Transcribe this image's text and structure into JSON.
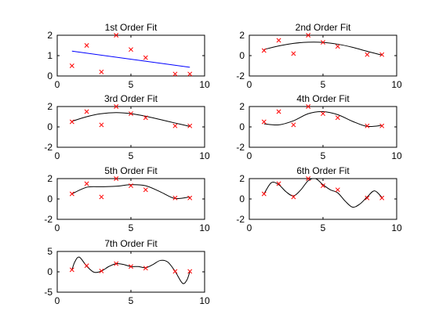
{
  "chart_data": [
    {
      "type": "line",
      "title": "1st Order Fit",
      "xlim": [
        0,
        10
      ],
      "ylim": [
        0,
        2
      ],
      "xticks": [
        0,
        5,
        10
      ],
      "yticks": [
        0,
        1,
        2
      ],
      "xtick_labels": [
        "0",
        "5",
        "10"
      ],
      "ytick_labels": [
        "0",
        "1",
        "2"
      ],
      "fit_color": "#0000ff",
      "fit": {
        "x": [
          1,
          9
        ],
        "y": [
          1.22,
          0.43
        ]
      },
      "points": {
        "x": [
          1,
          2,
          3,
          4,
          5,
          6,
          8,
          9
        ],
        "y": [
          0.5,
          1.5,
          0.2,
          2.0,
          1.3,
          0.9,
          0.1,
          0.1
        ]
      }
    },
    {
      "type": "line",
      "title": "2nd Order Fit",
      "xlim": [
        0,
        10
      ],
      "ylim": [
        -2,
        2
      ],
      "xticks": [
        0,
        5,
        10
      ],
      "yticks": [
        -2,
        0,
        2
      ],
      "xtick_labels": [
        "0",
        "5",
        "10"
      ],
      "ytick_labels": [
        "-2",
        "0",
        "2"
      ],
      "fit_color": "#000000",
      "fit": {
        "x": [
          1,
          2,
          3,
          4,
          5,
          6,
          7,
          8,
          9
        ],
        "y": [
          0.6,
          0.95,
          1.2,
          1.32,
          1.3,
          1.12,
          0.82,
          0.42,
          0.05
        ]
      },
      "points": {
        "x": [
          1,
          2,
          3,
          4,
          5,
          6,
          8,
          9
        ],
        "y": [
          0.5,
          1.5,
          0.2,
          2.0,
          1.3,
          0.9,
          0.1,
          0.1
        ]
      }
    },
    {
      "type": "line",
      "title": "3rd Order Fit",
      "xlim": [
        0,
        10
      ],
      "ylim": [
        -2,
        2
      ],
      "xticks": [
        0,
        5,
        10
      ],
      "yticks": [
        -2,
        0,
        2
      ],
      "xtick_labels": [
        "0",
        "5",
        "10"
      ],
      "ytick_labels": [
        "-2",
        "0",
        "2"
      ],
      "fit_color": "#000000",
      "fit": {
        "x": [
          1,
          2,
          3,
          4,
          5,
          6,
          7,
          8,
          9
        ],
        "y": [
          0.55,
          1.0,
          1.3,
          1.4,
          1.3,
          1.05,
          0.72,
          0.38,
          0.05
        ]
      },
      "points": {
        "x": [
          1,
          2,
          3,
          4,
          5,
          6,
          8,
          9
        ],
        "y": [
          0.5,
          1.5,
          0.2,
          2.0,
          1.3,
          0.9,
          0.1,
          0.1
        ]
      }
    },
    {
      "type": "line",
      "title": "4th Order Fit",
      "xlim": [
        0,
        10
      ],
      "ylim": [
        -2,
        2
      ],
      "xticks": [
        0,
        5,
        10
      ],
      "yticks": [
        -2,
        0,
        2
      ],
      "xtick_labels": [
        "0",
        "5",
        "10"
      ],
      "ytick_labels": [
        "-2",
        "0",
        "2"
      ],
      "fit_color": "#000000",
      "fit": {
        "x": [
          1,
          2,
          3,
          4,
          5,
          6,
          7,
          8,
          9
        ],
        "y": [
          0.3,
          0.2,
          0.6,
          1.3,
          1.5,
          1.2,
          0.55,
          0.05,
          0.15
        ]
      },
      "points": {
        "x": [
          1,
          2,
          3,
          4,
          5,
          6,
          8,
          9
        ],
        "y": [
          0.5,
          1.5,
          0.2,
          2.0,
          1.3,
          0.9,
          0.1,
          0.1
        ]
      }
    },
    {
      "type": "line",
      "title": "5th Order Fit",
      "xlim": [
        0,
        10
      ],
      "ylim": [
        -2,
        2
      ],
      "xticks": [
        0,
        5,
        10
      ],
      "yticks": [
        -2,
        0,
        2
      ],
      "xtick_labels": [
        "0",
        "5",
        "10"
      ],
      "ytick_labels": [
        "-2",
        "0",
        "2"
      ],
      "fit_color": "#000000",
      "fit": {
        "x": [
          1,
          2,
          3,
          4,
          5,
          6,
          7,
          8,
          9
        ],
        "y": [
          0.5,
          1.15,
          1.2,
          1.25,
          1.4,
          1.3,
          0.7,
          0.05,
          0.2
        ]
      },
      "points": {
        "x": [
          1,
          2,
          3,
          4,
          5,
          6,
          8,
          9
        ],
        "y": [
          0.5,
          1.5,
          0.2,
          2.0,
          1.3,
          0.9,
          0.1,
          0.1
        ]
      }
    },
    {
      "type": "line",
      "title": "6th Order Fit",
      "xlim": [
        0,
        10
      ],
      "ylim": [
        -2,
        2
      ],
      "xticks": [
        0,
        5,
        10
      ],
      "yticks": [
        -2,
        0,
        2
      ],
      "xtick_labels": [
        "0",
        "5",
        "10"
      ],
      "ytick_labels": [
        "-2",
        "0",
        "2"
      ],
      "fit_color": "#000000",
      "fit": {
        "x": [
          1,
          1.5,
          2,
          2.5,
          3,
          3.5,
          4,
          4.5,
          5,
          5.5,
          6,
          6.5,
          7,
          7.5,
          8,
          8.5,
          9
        ],
        "y": [
          0.5,
          1.6,
          1.4,
          0.7,
          0.3,
          0.9,
          1.8,
          2.0,
          1.4,
          0.9,
          0.6,
          -0.2,
          -0.8,
          -0.5,
          0.2,
          0.8,
          0.15
        ]
      },
      "points": {
        "x": [
          1,
          2,
          3,
          4,
          5,
          6,
          8,
          9
        ],
        "y": [
          0.5,
          1.5,
          0.2,
          2.0,
          1.3,
          0.9,
          0.1,
          0.1
        ]
      }
    },
    {
      "type": "line",
      "title": "7th Order Fit",
      "xlim": [
        0,
        10
      ],
      "ylim": [
        -5,
        5
      ],
      "xticks": [
        0,
        5,
        10
      ],
      "yticks": [
        -5,
        0,
        5
      ],
      "xtick_labels": [
        "0",
        "5",
        "10"
      ],
      "ytick_labels": [
        "-5",
        "0",
        "5"
      ],
      "fit_color": "#000000",
      "fit": {
        "x": [
          1,
          1.2,
          1.5,
          2,
          2.5,
          3,
          3.5,
          4,
          4.5,
          5,
          5.5,
          6,
          6.5,
          7,
          7.5,
          8,
          8.5,
          8.8,
          9
        ],
        "y": [
          0.5,
          2.5,
          3.6,
          1.4,
          -0.1,
          0.2,
          1.3,
          2.0,
          1.8,
          1.3,
          1.3,
          1.0,
          1.8,
          2.8,
          2.4,
          0.1,
          -2.8,
          -2.0,
          0.1
        ]
      },
      "points": {
        "x": [
          1,
          2,
          3,
          4,
          5,
          6,
          8,
          9
        ],
        "y": [
          0.5,
          1.5,
          0.2,
          2.0,
          1.3,
          0.9,
          0.1,
          0.1
        ]
      }
    }
  ],
  "marker_color": "#ff0000"
}
